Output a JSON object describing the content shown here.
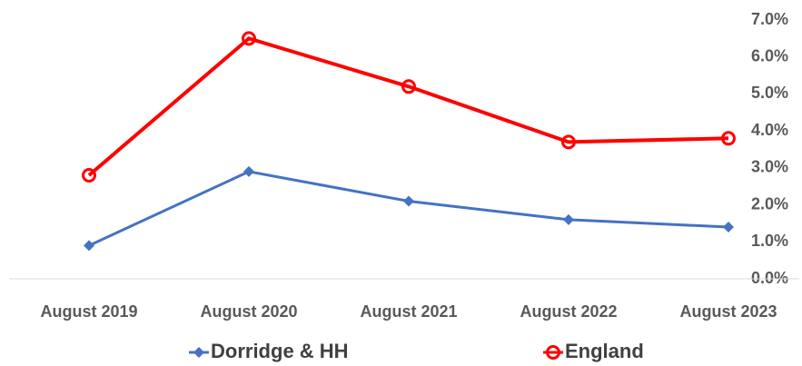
{
  "chart_data": {
    "type": "line",
    "categories": [
      "August 2019",
      "August 2020",
      "August 2021",
      "August 2022",
      "August 2023"
    ],
    "series": [
      {
        "name": "Dorridge & HH",
        "color": "#4472c4",
        "marker": "diamond",
        "values": [
          0.9,
          2.9,
          2.1,
          1.6,
          1.4
        ]
      },
      {
        "name": "England",
        "color": "#ff0000",
        "marker": "circle",
        "values": [
          2.8,
          6.5,
          5.2,
          3.7,
          3.8
        ]
      }
    ],
    "ylim": [
      0,
      7
    ],
    "yticks": [
      {
        "value": 0,
        "label": "0.0%"
      },
      {
        "value": 1,
        "label": "1.0%"
      },
      {
        "value": 2,
        "label": "2.0%"
      },
      {
        "value": 3,
        "label": "3.0%"
      },
      {
        "value": 4,
        "label": "4.0%"
      },
      {
        "value": 5,
        "label": "5.0%"
      },
      {
        "value": 6,
        "label": "6.0%"
      },
      {
        "value": 7,
        "label": "7.0%"
      }
    ],
    "yaxis_side": "right",
    "grid": false,
    "legend": "bottom"
  }
}
